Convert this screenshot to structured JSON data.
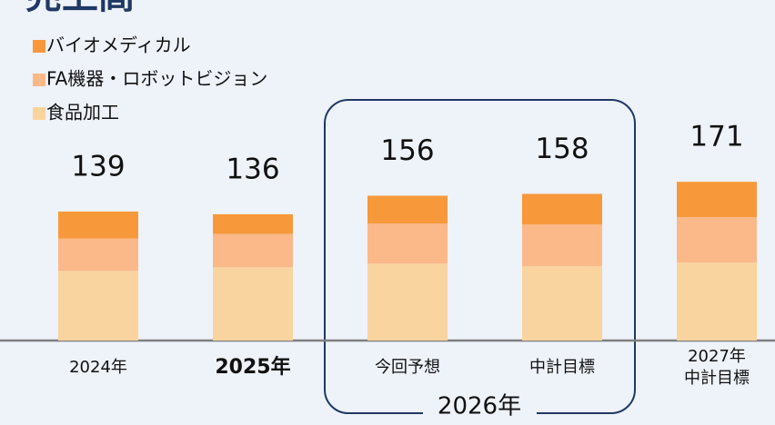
{
  "chart_data": {
    "type": "stacked_bar",
    "title": "売上高",
    "categories": [
      "2024年",
      "2025年",
      "今回予想",
      "中計目標",
      "2027年\n中計目標"
    ],
    "group_label": "2026年",
    "series": [
      {
        "name": "バイオメディカル",
        "color": "#F7993A",
        "values": [
          29,
          21,
          30,
          33,
          38
        ]
      },
      {
        "name": "FA機器・ロボットビジョン",
        "color": "#FBB888",
        "values": [
          35,
          36,
          43,
          45,
          49
        ]
      },
      {
        "name": "食品加工",
        "color": "#FAD49E",
        "values": [
          75,
          79,
          83,
          80,
          84
        ]
      }
    ],
    "totals": [
      139,
      136,
      156,
      158,
      171
    ],
    "ylim": [
      0,
      180
    ]
  }
}
